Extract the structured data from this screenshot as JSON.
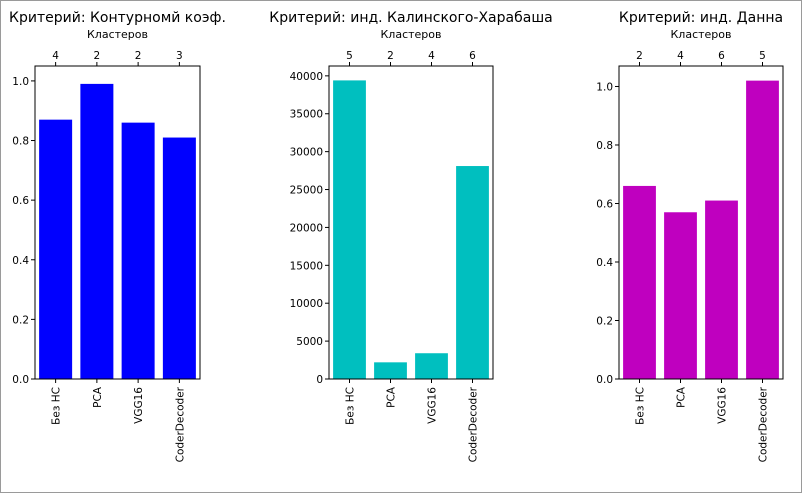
{
  "chart_data": [
    {
      "type": "bar",
      "title": "Критерий: Контурномй коэф.",
      "top_axis_label": "Кластеров",
      "categories": [
        "Без НС",
        "PCA",
        "VGG16",
        "CoderDecoder"
      ],
      "top_ticks": [
        "4",
        "2",
        "2",
        "3"
      ],
      "values": [
        0.87,
        0.99,
        0.86,
        0.81
      ],
      "color": "#0000ff",
      "ylim": [
        0,
        1.05
      ],
      "yticks": [
        0.0,
        0.2,
        0.4,
        0.6,
        0.8,
        1.0
      ],
      "ytick_labels": [
        "0.0",
        "0.2",
        "0.4",
        "0.6",
        "0.8",
        "1.0"
      ]
    },
    {
      "type": "bar",
      "title": "Критерий: инд. Калинского-Харабаша",
      "top_axis_label": "Кластеров",
      "categories": [
        "Без НС",
        "PCA",
        "VGG16",
        "CoderDecoder"
      ],
      "top_ticks": [
        "5",
        "2",
        "4",
        "6"
      ],
      "values": [
        39400,
        2200,
        3400,
        28100
      ],
      "color": "#00bfbf",
      "ylim": [
        0,
        41300
      ],
      "yticks": [
        0,
        5000,
        10000,
        15000,
        20000,
        25000,
        30000,
        35000,
        40000
      ],
      "ytick_labels": [
        "0",
        "5000",
        "10000",
        "15000",
        "20000",
        "25000",
        "30000",
        "35000",
        "40000"
      ]
    },
    {
      "type": "bar",
      "title": "Критерий: инд. Данна",
      "top_axis_label": "Кластеров",
      "categories": [
        "Без НС",
        "PCA",
        "VGG16",
        "CoderDecoder"
      ],
      "top_ticks": [
        "2",
        "4",
        "6",
        "5"
      ],
      "values": [
        0.66,
        0.57,
        0.61,
        1.02
      ],
      "color": "#bf00bf",
      "ylim": [
        0,
        1.07
      ],
      "yticks": [
        0.0,
        0.2,
        0.4,
        0.6,
        0.8,
        1.0
      ],
      "ytick_labels": [
        "0.0",
        "0.2",
        "0.4",
        "0.6",
        "0.8",
        "1.0"
      ]
    }
  ]
}
